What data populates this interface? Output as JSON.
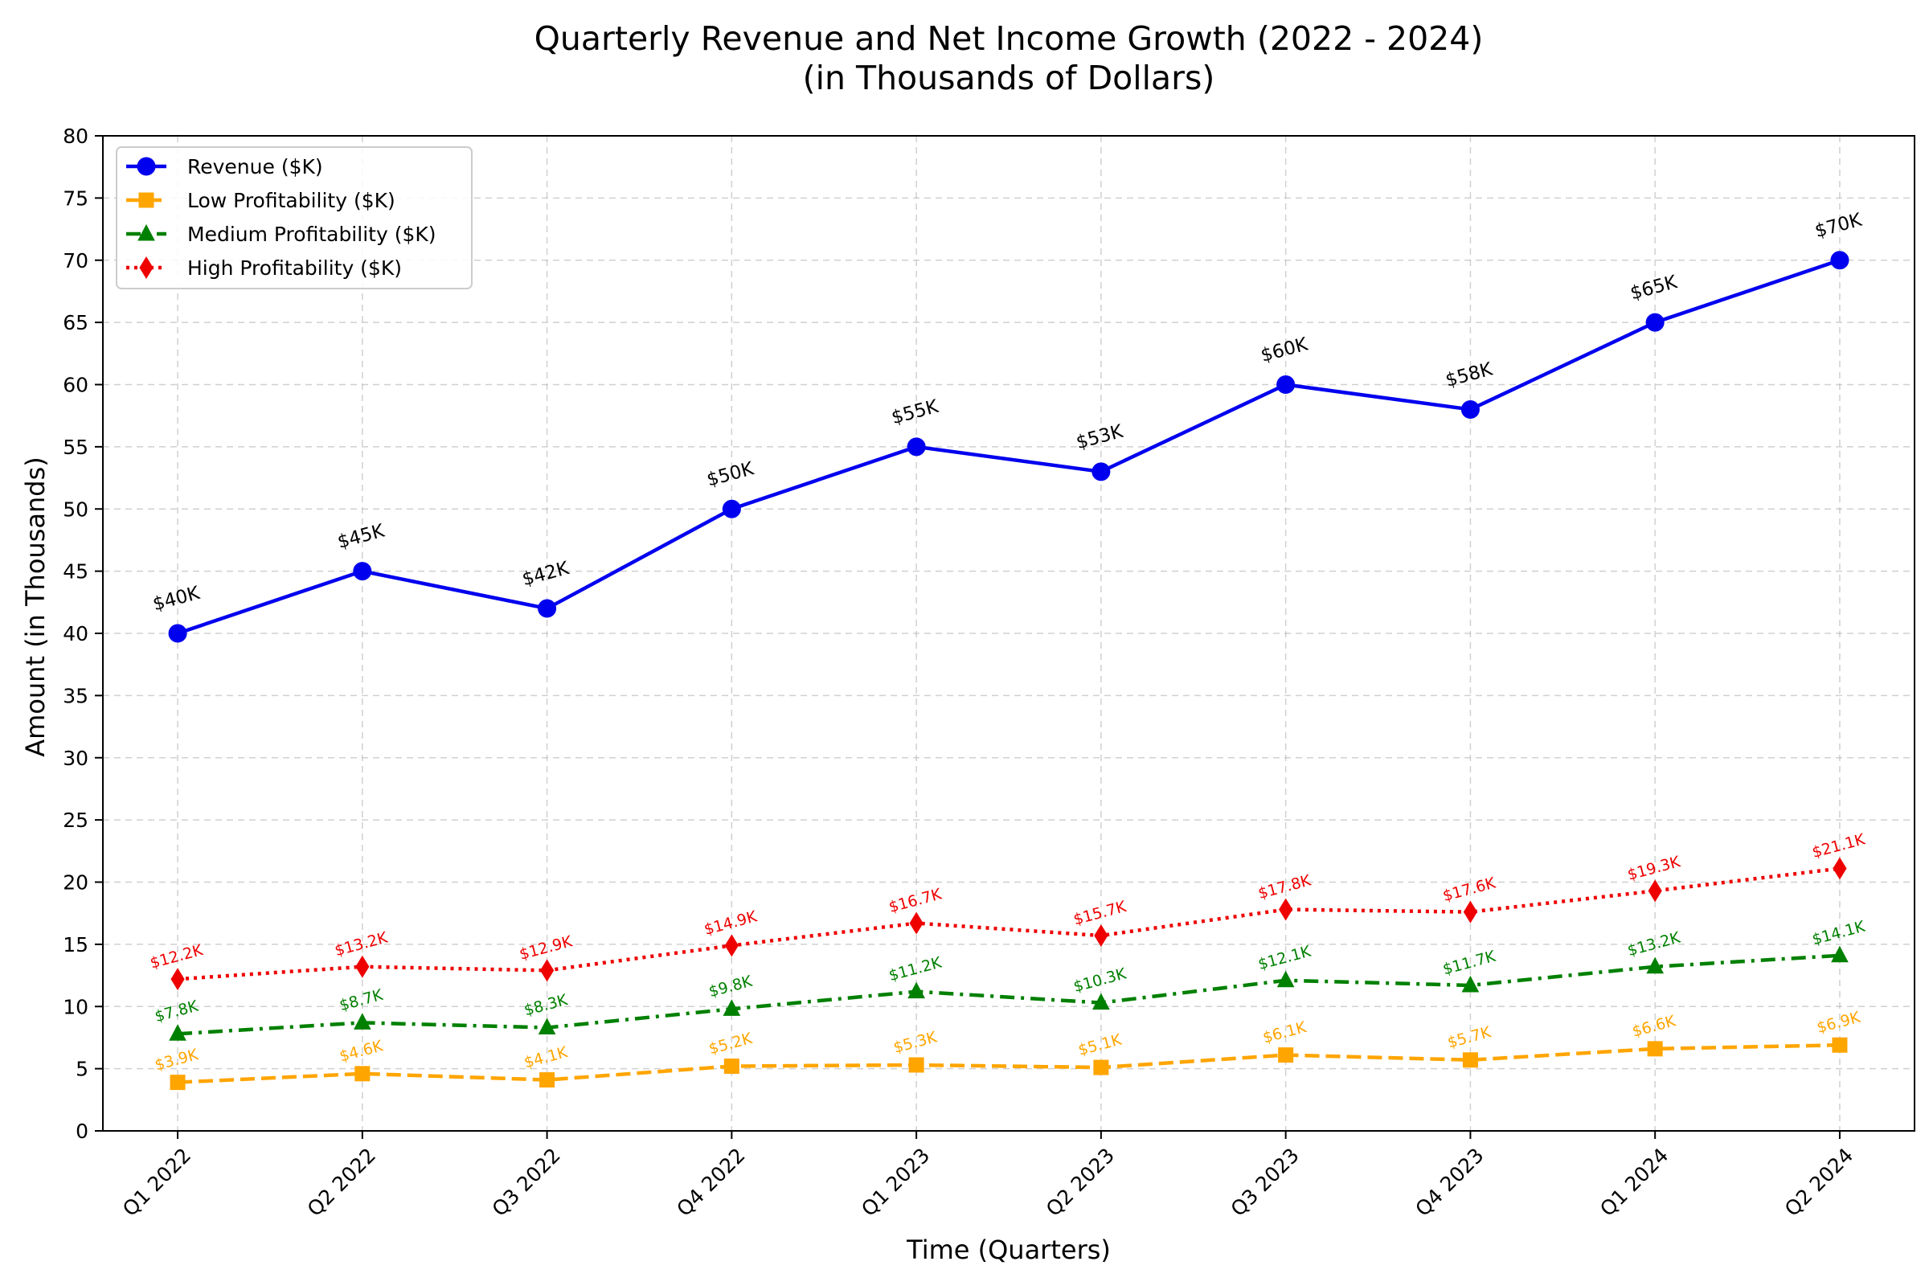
{
  "chart_data": {
    "type": "line",
    "title": "Quarterly Revenue and Net Income Growth (2022 - 2024)",
    "subtitle": "(in Thousands of Dollars)",
    "xlabel": "Time (Quarters)",
    "ylabel": "Amount (in Thousands)",
    "categories": [
      "Q1 2022",
      "Q2 2022",
      "Q3 2022",
      "Q4 2022",
      "Q1 2023",
      "Q2 2023",
      "Q3 2023",
      "Q4 2023",
      "Q1 2024",
      "Q2 2024"
    ],
    "ylim": [
      0,
      80
    ],
    "yticks": [
      0,
      5,
      10,
      15,
      20,
      25,
      30,
      35,
      40,
      45,
      50,
      55,
      60,
      65,
      70,
      75,
      80
    ],
    "grid": true,
    "legend_position": "top-left",
    "series": [
      {
        "name": "Revenue ($K)",
        "values": [
          40,
          45,
          42,
          50,
          55,
          53,
          60,
          58,
          65,
          70
        ],
        "labels": [
          "$40K",
          "$45K",
          "$42K",
          "$50K",
          "$55K",
          "$53K",
          "$60K",
          "$58K",
          "$65K",
          "$70K"
        ],
        "color": "#0000ee",
        "label_color": "#000000",
        "marker": "circle",
        "line_style": "solid"
      },
      {
        "name": "Low Profitability ($K)",
        "values": [
          3.9,
          4.6,
          4.1,
          5.2,
          5.3,
          5.1,
          6.1,
          5.7,
          6.6,
          6.9
        ],
        "labels": [
          "$3.9K",
          "$4.6K",
          "$4.1K",
          "$5.2K",
          "$5.3K",
          "$5.1K",
          "$6.1K",
          "$5.7K",
          "$6.6K",
          "$6.9K"
        ],
        "color": "#ffa500",
        "label_color": "#ffa500",
        "marker": "square",
        "line_style": "dashed"
      },
      {
        "name": "Medium Profitability ($K)",
        "values": [
          7.8,
          8.7,
          8.3,
          9.8,
          11.2,
          10.3,
          12.1,
          11.7,
          13.2,
          14.1
        ],
        "labels": [
          "$7.8K",
          "$8.7K",
          "$8.3K",
          "$9.8K",
          "$11.2K",
          "$10.3K",
          "$12.1K",
          "$11.7K",
          "$13.2K",
          "$14.1K"
        ],
        "color": "#008000",
        "label_color": "#008000",
        "marker": "triangle",
        "line_style": "dashdot"
      },
      {
        "name": "High Profitability ($K)",
        "values": [
          12.2,
          13.2,
          12.9,
          14.9,
          16.7,
          15.7,
          17.8,
          17.6,
          19.3,
          21.1
        ],
        "labels": [
          "$12.2K",
          "$13.2K",
          "$12.9K",
          "$14.9K",
          "$16.7K",
          "$15.7K",
          "$17.8K",
          "$17.6K",
          "$19.3K",
          "$21.1K"
        ],
        "color": "#ee0000",
        "label_color": "#ee0000",
        "marker": "diamond",
        "line_style": "dotted"
      }
    ]
  }
}
